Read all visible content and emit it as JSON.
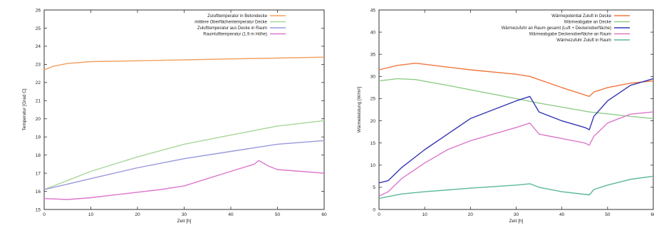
{
  "chart_data": [
    {
      "type": "line",
      "title": "",
      "xlabel": "Zeit [h]",
      "ylabel": "Temperatur [Grad C]",
      "xlim": [
        0,
        60
      ],
      "ylim": [
        15,
        26
      ],
      "xticks": [
        0,
        10,
        20,
        30,
        40,
        50,
        60
      ],
      "yticks": [
        15,
        16,
        17,
        18,
        19,
        20,
        21,
        22,
        23,
        24,
        25,
        26
      ],
      "legend_position": "top-right",
      "grid": false,
      "series": [
        {
          "name": "Zulufttemperatur in Betondecke",
          "color": "#f0a060",
          "x": [
            0,
            2,
            5,
            10,
            20,
            30,
            40,
            50,
            60
          ],
          "y": [
            22.7,
            22.9,
            23.05,
            23.15,
            23.2,
            23.25,
            23.3,
            23.35,
            23.4
          ]
        },
        {
          "name": "mittlere Oberflächentemperatur Decke",
          "color": "#a9d69a",
          "x": [
            0,
            5,
            10,
            20,
            30,
            40,
            50,
            60
          ],
          "y": [
            16.1,
            16.6,
            17.1,
            17.9,
            18.6,
            19.1,
            19.6,
            19.9
          ]
        },
        {
          "name": "Zulufttemperatur aus Decke in Raum",
          "color": "#9999dd",
          "x": [
            0,
            5,
            10,
            20,
            30,
            40,
            50,
            60
          ],
          "y": [
            16.1,
            16.4,
            16.7,
            17.3,
            17.8,
            18.2,
            18.6,
            18.8
          ]
        },
        {
          "name": "Raumlufttemperatur (1.9 m Höhe)",
          "color": "#dd77cc",
          "x": [
            0,
            5,
            10,
            15,
            20,
            25,
            30,
            35,
            40,
            45,
            46,
            48,
            50,
            55,
            60
          ],
          "y": [
            15.6,
            15.55,
            15.65,
            15.8,
            15.95,
            16.1,
            16.3,
            16.7,
            17.1,
            17.5,
            17.7,
            17.4,
            17.2,
            17.1,
            17.0
          ]
        }
      ]
    },
    {
      "type": "line",
      "title": "",
      "xlabel": "Zeit [h]",
      "ylabel": "Wärmeleistung [W/m²]",
      "xlim": [
        0,
        60
      ],
      "ylim": [
        0,
        45
      ],
      "xticks": [
        0,
        10,
        20,
        30,
        40,
        50,
        60
      ],
      "yticks": [
        0,
        5,
        10,
        15,
        20,
        25,
        30,
        35,
        40,
        45
      ],
      "legend_position": "top-right",
      "grid": false,
      "series": [
        {
          "name": "Wärmepotential Zuluft in Decke",
          "color": "#f07840",
          "x": [
            0,
            4,
            8,
            12,
            20,
            30,
            33,
            40,
            46,
            47,
            50,
            55,
            60
          ],
          "y": [
            31.5,
            32.5,
            33.0,
            32.5,
            31.5,
            30.5,
            30.0,
            27.5,
            25.5,
            26.5,
            27.5,
            28.5,
            29.0
          ]
        },
        {
          "name": "Wärmeabgabe an Decke",
          "color": "#90cc88",
          "x": [
            0,
            4,
            8,
            15,
            25,
            35,
            46,
            55,
            60
          ],
          "y": [
            29.0,
            29.5,
            29.3,
            28.0,
            26.0,
            24.0,
            22.0,
            21.0,
            20.5
          ]
        },
        {
          "name": "Wärmezufuhr an Raum gesamt (Luft + Deckenoberfläche)",
          "color": "#3535b5",
          "x": [
            0,
            2,
            5,
            10,
            15,
            20,
            25,
            30,
            33,
            35,
            40,
            45,
            46,
            47,
            50,
            55,
            60
          ],
          "y": [
            6.0,
            6.5,
            9.5,
            13.5,
            17.0,
            20.5,
            22.5,
            24.5,
            25.5,
            22.0,
            20.0,
            18.5,
            18.0,
            21.0,
            24.5,
            28.0,
            29.5
          ]
        },
        {
          "name": "Wärmeabgabe Deckenoberfläche an Raum",
          "color": "#dd77cc",
          "x": [
            0,
            2,
            5,
            10,
            15,
            20,
            25,
            30,
            33,
            35,
            40,
            45,
            46,
            47,
            50,
            55,
            60
          ],
          "y": [
            3.0,
            4.0,
            7.0,
            10.5,
            13.5,
            15.5,
            17.0,
            18.5,
            19.5,
            17.0,
            16.0,
            15.0,
            14.5,
            16.5,
            19.5,
            21.5,
            22.0
          ]
        },
        {
          "name": "Wärmezufuhr Zuluft in Raum",
          "color": "#5cb89a",
          "x": [
            0,
            5,
            10,
            20,
            30,
            33,
            35,
            40,
            46,
            47,
            50,
            55,
            60
          ],
          "y": [
            2.5,
            3.5,
            4.0,
            4.8,
            5.5,
            5.8,
            5.0,
            4.0,
            3.3,
            4.5,
            5.5,
            6.8,
            7.5
          ]
        }
      ]
    }
  ]
}
